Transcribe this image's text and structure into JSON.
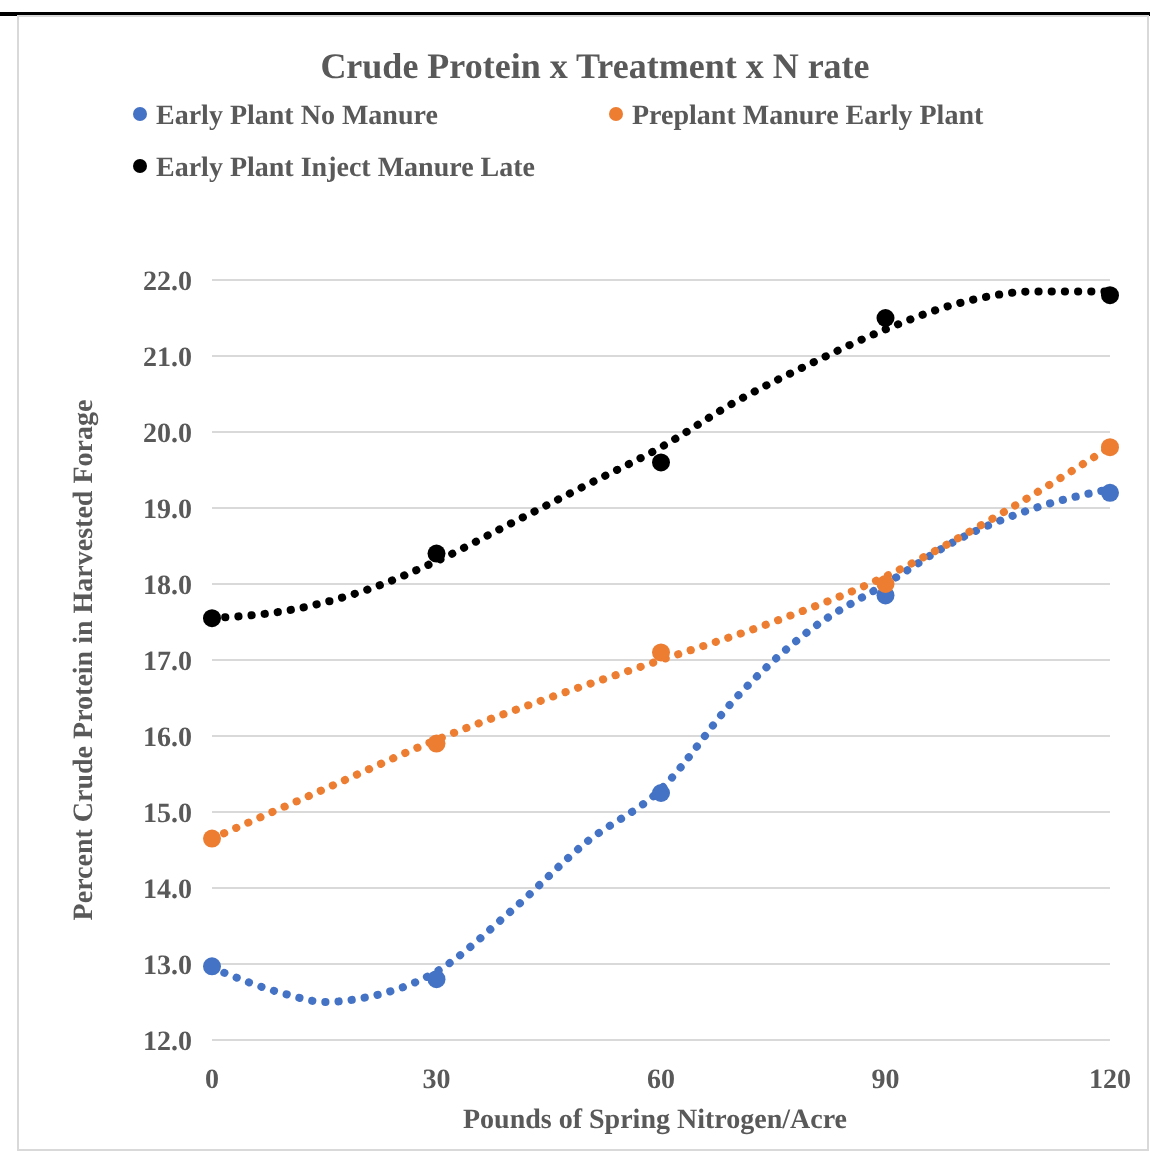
{
  "chart_data": {
    "type": "scatter",
    "title": "Crude Protein x Treatment  x N rate",
    "xlabel": "Pounds of Spring Nitrogen/Acre",
    "ylabel": "Percent Crude Protein in Harvested Forage",
    "x": [
      0,
      30,
      60,
      90,
      120
    ],
    "series": [
      {
        "name": "Early Plant No Manure",
        "color": "#4472c4",
        "values": [
          12.97,
          12.8,
          15.25,
          17.85,
          19.2
        ]
      },
      {
        "name": "Preplant Manure Early Plant",
        "color": "#ed7d31",
        "values": [
          14.65,
          15.9,
          17.1,
          18.0,
          19.8
        ]
      },
      {
        "name": "Early Plant Inject Manure Late",
        "color": "#000000",
        "values": [
          17.55,
          18.4,
          19.6,
          21.5,
          21.8
        ]
      },
      {
        "type": "line",
        "color": "#4472c4",
        "line_style": "dotted",
        "marker": "none",
        "x": [
          0,
          10,
          15,
          20,
          30,
          40,
          50,
          60,
          70,
          80,
          90,
          100,
          110,
          120
        ],
        "values": [
          12.95,
          12.6,
          12.5,
          12.55,
          12.9,
          13.7,
          14.6,
          15.3,
          16.5,
          17.4,
          18.0,
          18.6,
          19.0,
          19.25
        ]
      },
      {
        "type": "line",
        "color": "#ed7d31",
        "line_style": "dotted",
        "marker": "none",
        "x": [
          0,
          15,
          30,
          45,
          60,
          75,
          90,
          105,
          120
        ],
        "values": [
          14.65,
          15.3,
          15.95,
          16.5,
          17.0,
          17.5,
          18.1,
          18.9,
          19.8
        ]
      },
      {
        "type": "line",
        "color": "#000000",
        "line_style": "dotted",
        "marker": "none",
        "x": [
          0,
          10,
          20,
          30,
          40,
          50,
          60,
          70,
          80,
          90,
          100,
          110,
          120
        ],
        "values": [
          17.55,
          17.65,
          17.9,
          18.3,
          18.8,
          19.3,
          19.8,
          20.4,
          20.9,
          21.35,
          21.7,
          21.85,
          21.85
        ]
      }
    ],
    "xlim": [
      0,
      120
    ],
    "xticks": [
      0,
      30,
      60,
      90,
      120
    ],
    "ylim": [
      12,
      22
    ],
    "yticks": [
      {
        "value": 12,
        "label": "12.0"
      },
      {
        "value": 13,
        "label": "13.0"
      },
      {
        "value": 14,
        "label": "14.0"
      },
      {
        "value": 15,
        "label": "15.0"
      },
      {
        "value": 16,
        "label": "16.0"
      },
      {
        "value": 17,
        "label": "17.0"
      },
      {
        "value": 18,
        "label": "18.0"
      },
      {
        "value": 19,
        "label": "19.0"
      },
      {
        "value": 20,
        "label": "20.0"
      },
      {
        "value": 21,
        "label": "21.0"
      },
      {
        "value": 22,
        "label": "22.0"
      }
    ],
    "grid": "y",
    "legend": "top",
    "marker": "circle"
  }
}
